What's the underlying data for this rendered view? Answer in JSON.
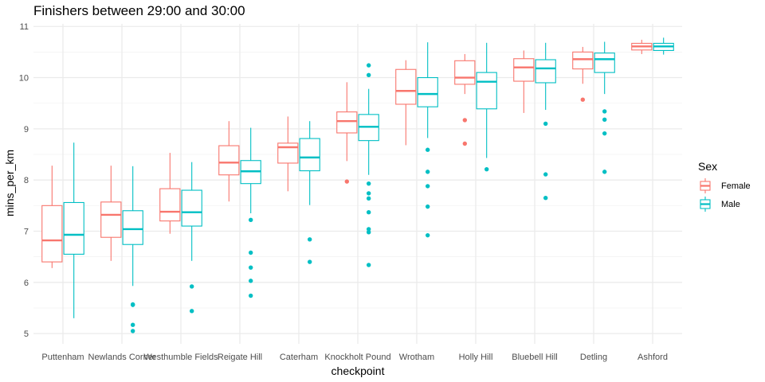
{
  "chart_data": {
    "type": "boxplot",
    "title": "Finishers between 29:00 and 30:00",
    "xlabel": "checkpoint",
    "ylabel": "mins_per_km",
    "ylim": [
      4.8,
      11.05
    ],
    "yticks": [
      5,
      6,
      7,
      8,
      9,
      10,
      11
    ],
    "grid": true,
    "legend": {
      "title": "Sex",
      "position": "right"
    },
    "categories": [
      "Puttenham",
      "Newlands Corner",
      "Westhumble Fields",
      "Reigate Hill",
      "Caterham",
      "Knockholt Pound",
      "Wrotham",
      "Holly Hill",
      "Bluebell Hill",
      "Detling",
      "Ashford"
    ],
    "series": [
      {
        "name": "Female",
        "color": "#F8766D",
        "boxes": [
          {
            "lower": 6.28,
            "q1": 6.4,
            "median": 6.82,
            "q3": 7.5,
            "upper": 8.28,
            "outliers": []
          },
          {
            "lower": 6.42,
            "q1": 6.88,
            "median": 7.32,
            "q3": 7.57,
            "upper": 8.28,
            "outliers": []
          },
          {
            "lower": 6.95,
            "q1": 7.2,
            "median": 7.38,
            "q3": 7.83,
            "upper": 8.53,
            "outliers": []
          },
          {
            "lower": 7.58,
            "q1": 8.1,
            "median": 8.34,
            "q3": 8.67,
            "upper": 9.15,
            "outliers": []
          },
          {
            "lower": 7.78,
            "q1": 8.33,
            "median": 8.64,
            "q3": 8.72,
            "upper": 9.24,
            "outliers": []
          },
          {
            "lower": 8.37,
            "q1": 8.92,
            "median": 9.15,
            "q3": 9.33,
            "upper": 9.91,
            "outliers": [
              7.97
            ]
          },
          {
            "lower": 8.68,
            "q1": 9.48,
            "median": 9.74,
            "q3": 10.16,
            "upper": 10.34,
            "outliers": []
          },
          {
            "lower": 9.68,
            "q1": 9.87,
            "median": 10.0,
            "q3": 10.33,
            "upper": 10.46,
            "outliers": [
              9.17,
              8.71
            ]
          },
          {
            "lower": 9.31,
            "q1": 9.93,
            "median": 10.2,
            "q3": 10.37,
            "upper": 10.53,
            "outliers": []
          },
          {
            "lower": 9.88,
            "q1": 10.17,
            "median": 10.36,
            "q3": 10.5,
            "upper": 10.6,
            "outliers": [
              9.57
            ]
          },
          {
            "lower": 10.46,
            "q1": 10.54,
            "median": 10.61,
            "q3": 10.67,
            "upper": 10.74,
            "outliers": []
          }
        ]
      },
      {
        "name": "Male",
        "color": "#00BFC4",
        "boxes": [
          {
            "lower": 5.3,
            "q1": 6.55,
            "median": 6.93,
            "q3": 7.56,
            "upper": 8.73,
            "outliers": []
          },
          {
            "lower": 5.93,
            "q1": 6.74,
            "median": 7.04,
            "q3": 7.4,
            "upper": 8.27,
            "outliers": [
              5.57,
              5.56,
              5.17,
              5.05
            ]
          },
          {
            "lower": 6.42,
            "q1": 7.1,
            "median": 7.37,
            "q3": 7.8,
            "upper": 8.35,
            "outliers": [
              5.92,
              5.44
            ]
          },
          {
            "lower": 7.35,
            "q1": 7.93,
            "median": 8.17,
            "q3": 8.38,
            "upper": 9.02,
            "outliers": [
              7.22,
              6.58,
              6.29,
              6.03,
              5.74
            ]
          },
          {
            "lower": 7.51,
            "q1": 8.18,
            "median": 8.44,
            "q3": 8.81,
            "upper": 9.15,
            "outliers": [
              6.84,
              6.4
            ]
          },
          {
            "lower": 8.1,
            "q1": 8.77,
            "median": 9.04,
            "q3": 9.28,
            "upper": 9.78,
            "outliers": [
              10.24,
              10.05,
              7.93,
              7.74,
              7.64,
              7.37,
              7.04,
              6.98,
              6.34
            ]
          },
          {
            "lower": 8.82,
            "q1": 9.43,
            "median": 9.68,
            "q3": 10.0,
            "upper": 10.69,
            "outliers": [
              8.59,
              8.16,
              7.88,
              7.48,
              6.92
            ]
          },
          {
            "lower": 8.43,
            "q1": 9.39,
            "median": 9.92,
            "q3": 10.1,
            "upper": 10.68,
            "outliers": [
              8.21
            ]
          },
          {
            "lower": 9.37,
            "q1": 9.9,
            "median": 10.18,
            "q3": 10.35,
            "upper": 10.68,
            "outliers": [
              9.1,
              8.11,
              7.65
            ]
          },
          {
            "lower": 9.68,
            "q1": 10.1,
            "median": 10.36,
            "q3": 10.48,
            "upper": 10.7,
            "outliers": [
              9.34,
              9.18,
              8.91,
              8.16
            ]
          },
          {
            "lower": 10.45,
            "q1": 10.53,
            "median": 10.61,
            "q3": 10.67,
            "upper": 10.78,
            "outliers": []
          }
        ]
      }
    ]
  }
}
